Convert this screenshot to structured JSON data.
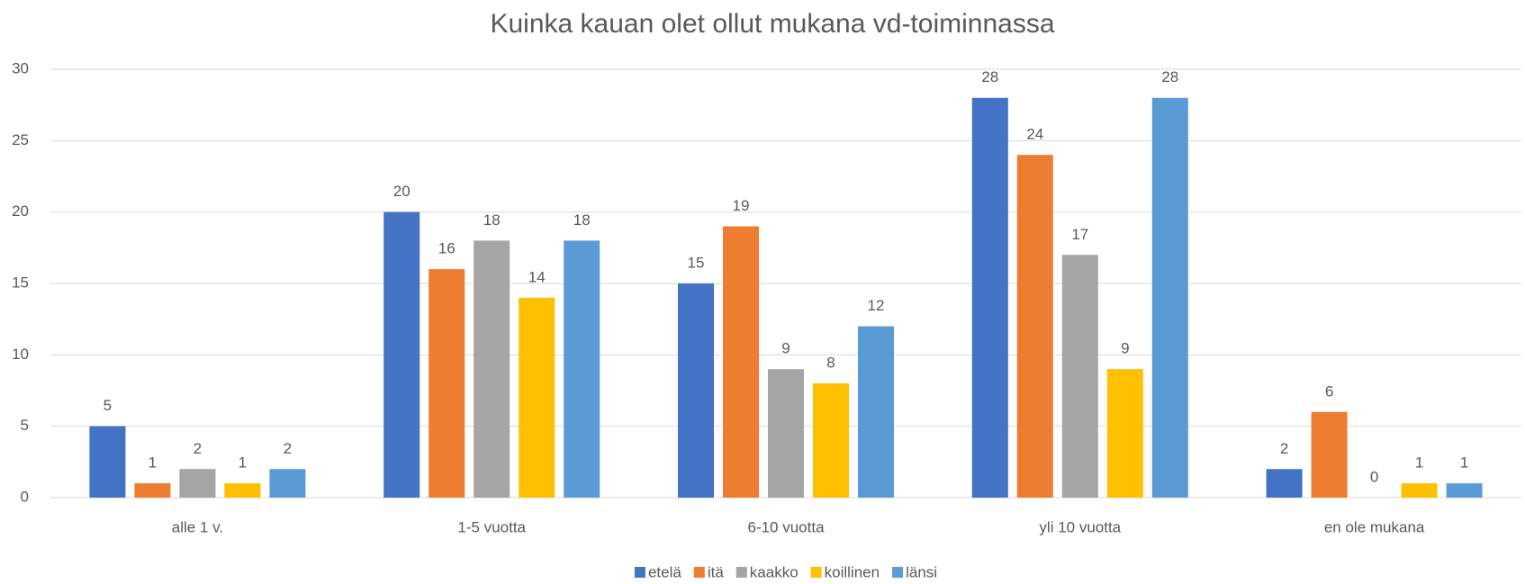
{
  "chart_data": {
    "type": "bar",
    "title": "Kuinka kauan olet ollut mukana vd-toiminnassa",
    "categories": [
      "alle 1 v.",
      "1-5 vuotta",
      "6-10 vuotta",
      "yli 10 vuotta",
      "en ole mukana"
    ],
    "series": [
      {
        "name": "etelä",
        "color": "#4472c4",
        "values": [
          5,
          20,
          15,
          28,
          2
        ]
      },
      {
        "name": "itä",
        "color": "#ed7d31",
        "values": [
          1,
          16,
          19,
          24,
          6
        ]
      },
      {
        "name": "kaakko",
        "color": "#a5a5a5",
        "values": [
          2,
          18,
          9,
          17,
          0
        ]
      },
      {
        "name": "koillinen",
        "color": "#ffc000",
        "values": [
          1,
          14,
          8,
          9,
          1
        ]
      },
      {
        "name": "länsi",
        "color": "#5b9bd5",
        "values": [
          2,
          18,
          12,
          28,
          1
        ]
      }
    ],
    "ylim": [
      0,
      30
    ],
    "yticks": [
      0,
      5,
      10,
      15,
      20,
      25,
      30
    ],
    "grid": true,
    "legend": "bottom"
  }
}
